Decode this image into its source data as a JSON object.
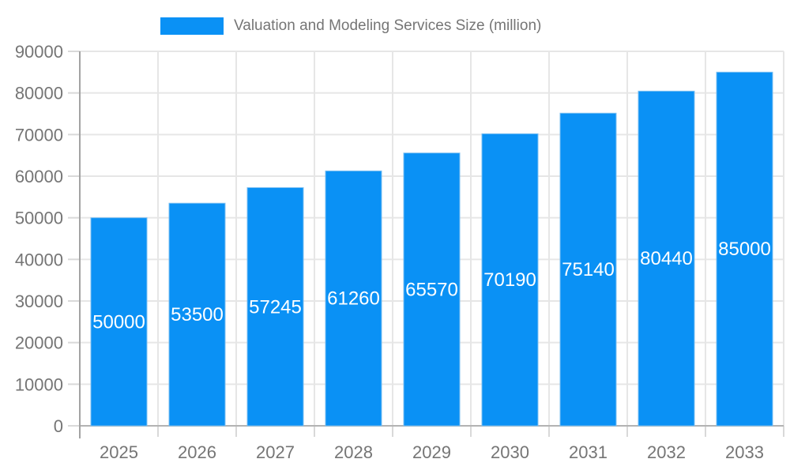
{
  "legend": {
    "label": "Valuation and Modeling Services Size (million)"
  },
  "colors": {
    "bar": "#0a91f5",
    "bar_edge": "#7cc0f2",
    "grid": "#e6e6e6",
    "tick": "#d9d9d9",
    "axis_line": "#a3a3a3",
    "baseline": "#b3b3b3",
    "axis_text": "#757575",
    "value_label": "#ffffff",
    "legend_text": "#757575"
  },
  "chart_data": {
    "type": "bar",
    "title": "Valuation and Modeling Services Size (million)",
    "categories": [
      "2025",
      "2026",
      "2027",
      "2028",
      "2029",
      "2030",
      "2031",
      "2032",
      "2033"
    ],
    "values": [
      50000,
      53500,
      57245,
      61260,
      65570,
      70190,
      75140,
      80440,
      85000
    ],
    "series": [
      {
        "name": "Valuation and Modeling Services Size (million)",
        "values": [
          50000,
          53500,
          57245,
          61260,
          65570,
          70190,
          75140,
          80440,
          85000
        ]
      }
    ],
    "xlabel": "",
    "ylabel": "",
    "ylim": [
      0,
      90000
    ],
    "yticks": [
      0,
      10000,
      20000,
      30000,
      40000,
      50000,
      60000,
      70000,
      80000,
      90000
    ],
    "grid": true,
    "legend_position": "top",
    "value_labels": "inside-center"
  }
}
